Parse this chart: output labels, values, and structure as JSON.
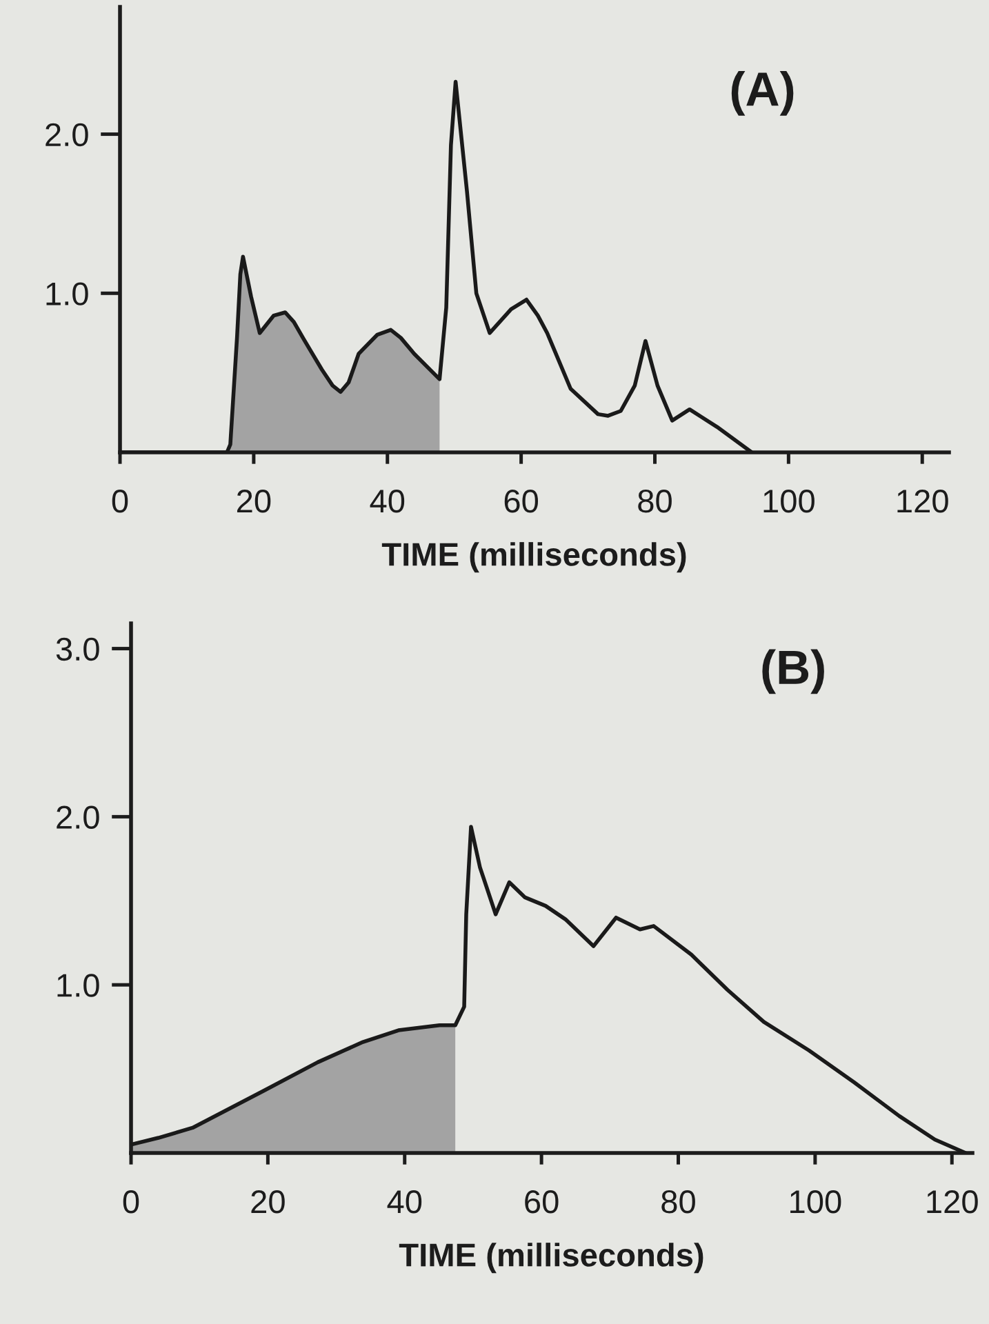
{
  "chart_data": [
    {
      "type": "line",
      "title": "(A)",
      "xlabel": "TIME (milliseconds)",
      "xlim": [
        0,
        124
      ],
      "xticks": [
        0,
        20,
        40,
        60,
        80,
        100,
        120
      ],
      "ylim": [
        0,
        2.8
      ],
      "yticks": [
        {
          "value": 1,
          "label": "1.0"
        },
        {
          "value": 2,
          "label": "2.0"
        }
      ],
      "series": [
        {
          "type": "area",
          "color": "#a3a3a3",
          "x": [
            16.5,
            17.5,
            18.0,
            18.4,
            19.6,
            20.9,
            23,
            24.7,
            26,
            27.5,
            30.2,
            31.8,
            33.0,
            34.2,
            35.7,
            38.5,
            40.5,
            42,
            44.0,
            47.8
          ],
          "values": [
            0.05,
            0.72,
            1.12,
            1.23,
            0.98,
            0.75,
            0.86,
            0.88,
            0.82,
            0.71,
            0.52,
            0.42,
            0.38,
            0.44,
            0.62,
            0.74,
            0.77,
            0.72,
            0.62,
            0.46
          ]
        },
        {
          "color": "#1a1a1a",
          "x": [
            0,
            16.0,
            16.5,
            17.5,
            18.0,
            18.4,
            19.6,
            20.9,
            23,
            24.7,
            26,
            27.5,
            30.2,
            31.8,
            33.0,
            34.2,
            35.7,
            38.5,
            40.5,
            42,
            44.0,
            47.8,
            48.8,
            49.5,
            50.2,
            51.9,
            53.3,
            55.3,
            58.5,
            60.8,
            62.5,
            63.9,
            67.4,
            71.5,
            73,
            74.9,
            77.0,
            78.6,
            80.4,
            82.6,
            85.2,
            89.3,
            94.5
          ],
          "values": [
            0,
            0,
            0.05,
            0.72,
            1.12,
            1.23,
            0.98,
            0.75,
            0.86,
            0.88,
            0.82,
            0.71,
            0.52,
            0.42,
            0.38,
            0.44,
            0.62,
            0.74,
            0.77,
            0.72,
            0.62,
            0.46,
            0.91,
            1.93,
            2.33,
            1.64,
            1.0,
            0.75,
            0.9,
            0.96,
            0.86,
            0.75,
            0.4,
            0.24,
            0.23,
            0.26,
            0.42,
            0.7,
            0.42,
            0.2,
            0.27,
            0.16,
            0
          ]
        }
      ]
    },
    {
      "type": "line",
      "title": "(B)",
      "xlabel": "TIME (milliseconds)",
      "xlim": [
        0,
        123
      ],
      "xticks": [
        0,
        20,
        40,
        60,
        80,
        100,
        120
      ],
      "ylim": [
        0,
        3.15
      ],
      "yticks": [
        {
          "value": 1,
          "label": "1.0"
        },
        {
          "value": 2,
          "label": "2.0"
        },
        {
          "value": 3,
          "label": "3.0"
        }
      ],
      "series": [
        {
          "type": "area",
          "color": "#a3a3a3",
          "x": [
            0,
            4,
            9,
            19.4,
            27.3,
            33.9,
            39.1,
            45.1,
            47.4
          ],
          "values": [
            0.05,
            0.09,
            0.15,
            0.37,
            0.54,
            0.66,
            0.73,
            0.76,
            0.76
          ]
        },
        {
          "color": "#1a1a1a",
          "x": [
            0,
            4,
            9,
            19.4,
            27.3,
            33.9,
            39.1,
            45.1,
            47.4,
            48.7,
            49.0,
            49.7,
            51.0,
            53.3,
            55.3,
            57.6,
            60.6,
            63.5,
            67.6,
            70.9,
            74.4,
            76.4,
            81.9,
            87.2,
            92.5,
            99.1,
            105.7,
            112.3,
            117.5,
            122
          ],
          "values": [
            0.05,
            0.09,
            0.15,
            0.37,
            0.54,
            0.66,
            0.73,
            0.76,
            0.76,
            0.87,
            1.42,
            1.94,
            1.7,
            1.42,
            1.61,
            1.52,
            1.47,
            1.39,
            1.23,
            1.4,
            1.33,
            1.35,
            1.18,
            0.97,
            0.78,
            0.61,
            0.42,
            0.22,
            0.08,
            0
          ]
        }
      ]
    }
  ]
}
